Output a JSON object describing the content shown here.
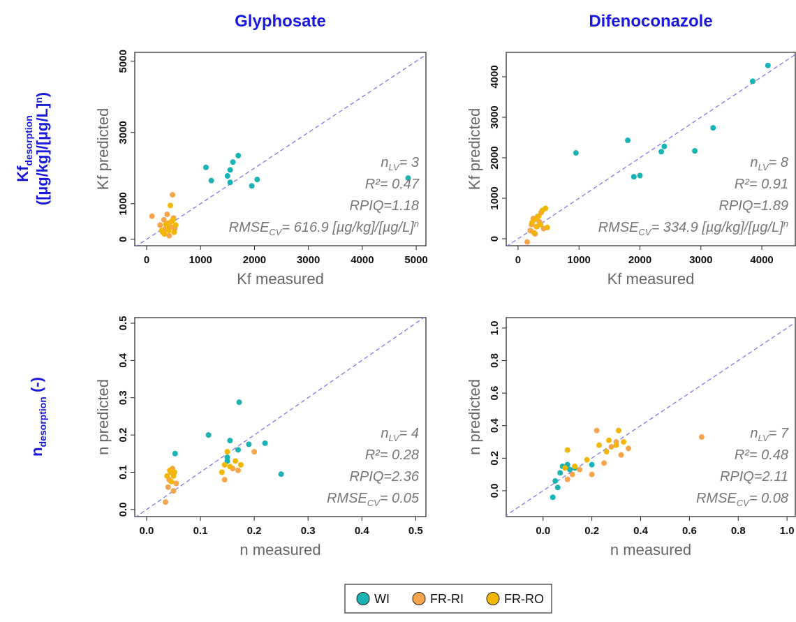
{
  "row_labels": [
    {
      "base": "Kf",
      "sub": "desorption",
      "line2": "([µg/kg]/[µg/L]",
      "sup": "n",
      "close": ")"
    },
    {
      "base": "n",
      "sub": "desorption",
      "rest": " (-)"
    }
  ],
  "chart_data": [
    {
      "type": "scatter",
      "title": "Glyphosate",
      "x_label": "Kf measured",
      "y_label": "Kf predicted",
      "xlim": [
        -220,
        5180
      ],
      "ylim": [
        -180,
        5250
      ],
      "xticks": [
        0,
        1000,
        2000,
        3000,
        4000,
        5000
      ],
      "yticks": [
        0,
        1000,
        3000,
        5000
      ],
      "stats": [
        {
          "base": "n",
          "sub": "LV",
          "rest": "= 3"
        },
        {
          "base": "R²= 0.47"
        },
        {
          "base": "RPIQ=1.18"
        },
        {
          "base": "RMSE",
          "sub": "CV",
          "rest": "= 616.9 [µg/kg]/[µg/L]",
          "sup": "n"
        }
      ],
      "series": [
        {
          "name": "WI",
          "color": "#1ab3b3",
          "x": [
            1100,
            1200,
            1500,
            1550,
            1600,
            1700,
            1550,
            1950,
            2050,
            4850
          ],
          "values": [
            2020,
            1650,
            1780,
            1950,
            2170,
            2350,
            1600,
            1500,
            1680,
            1720
          ]
        },
        {
          "name": "FR-RI",
          "color": "#f6a54c",
          "x": [
            100,
            250,
            300,
            320,
            350,
            380,
            400,
            420,
            450,
            480,
            500,
            520
          ],
          "values": [
            650,
            400,
            200,
            550,
            300,
            700,
            450,
            100,
            350,
            1250,
            600,
            300
          ]
        },
        {
          "name": "FR-RO",
          "color": "#f2b705",
          "x": [
            280,
            330,
            360,
            390,
            410,
            440,
            460,
            490,
            510,
            540
          ],
          "values": [
            250,
            150,
            420,
            380,
            250,
            950,
            500,
            550,
            200,
            400
          ]
        }
      ]
    },
    {
      "type": "scatter",
      "title": "Difenoconazole",
      "x_label": "Kf measured",
      "y_label": "Kf predicted",
      "xlim": [
        -194,
        4549
      ],
      "ylim": [
        -172,
        4603
      ],
      "xticks": [
        0,
        1000,
        2000,
        3000,
        4000
      ],
      "yticks": [
        0,
        1000,
        2000,
        3000,
        4000
      ],
      "stats": [
        {
          "base": "n",
          "sub": "LV",
          "rest": "= 8"
        },
        {
          "base": "R²= 0.91"
        },
        {
          "base": "RPIQ=1.89"
        },
        {
          "base": "RMSE",
          "sub": "CV",
          "rest": "= 334.9 [µg/kg]/[µg/L]",
          "sup": "n"
        }
      ],
      "series": [
        {
          "name": "WI",
          "color": "#1ab3b3",
          "x": [
            950,
            1800,
            1900,
            2000,
            2350,
            2400,
            2900,
            3200,
            3850,
            4100
          ],
          "values": [
            2120,
            2430,
            1530,
            1560,
            2150,
            2280,
            2170,
            2740,
            3890,
            4280
          ]
        },
        {
          "name": "FR-RI",
          "color": "#f6a54c",
          "x": [
            150,
            200,
            220,
            250,
            280,
            300,
            320,
            350,
            380,
            420
          ],
          "values": [
            -80,
            200,
            350,
            500,
            120,
            300,
            550,
            420,
            650,
            250
          ]
        },
        {
          "name": "FR-RO",
          "color": "#f2b705",
          "x": [
            230,
            260,
            290,
            310,
            340,
            370,
            400,
            450,
            480
          ],
          "values": [
            400,
            150,
            480,
            300,
            560,
            350,
            700,
            750,
            280
          ]
        }
      ]
    },
    {
      "type": "scatter",
      "x_label": "n measured",
      "y_label": "n predicted",
      "xlim": [
        -0.022,
        0.519
      ],
      "ylim": [
        -0.019,
        0.515
      ],
      "xticks": [
        {
          "value": 0,
          "label": "0.0"
        },
        0.1,
        0.2,
        0.3,
        0.4,
        0.5
      ],
      "yticks": [
        {
          "value": 0,
          "label": "0.0"
        },
        0.1,
        0.2,
        0.3,
        0.4,
        0.5
      ],
      "stats": [
        {
          "base": "n",
          "sub": "LV",
          "rest": "= 4"
        },
        {
          "base": "R²= 0.28"
        },
        {
          "base": "RPIQ=2.36"
        },
        {
          "base": "RMSE",
          "sub": "CV",
          "rest": "= 0.05"
        }
      ],
      "series": [
        {
          "name": "WI",
          "color": "#1ab3b3",
          "x": [
            0.053,
            0.115,
            0.15,
            0.155,
            0.17,
            0.172,
            0.19,
            0.22,
            0.25,
            0.15
          ],
          "values": [
            0.15,
            0.2,
            0.14,
            0.185,
            0.16,
            0.288,
            0.175,
            0.178,
            0.095,
            0.13
          ]
        },
        {
          "name": "FR-RI",
          "color": "#f6a54c",
          "x": [
            0.035,
            0.04,
            0.042,
            0.045,
            0.048,
            0.05,
            0.055,
            0.145,
            0.16,
            0.17,
            0.2
          ],
          "values": [
            0.02,
            0.06,
            0.08,
            0.1,
            0.11,
            0.05,
            0.07,
            0.08,
            0.11,
            0.105,
            0.155
          ]
        },
        {
          "name": "FR-RO",
          "color": "#f2b705",
          "x": [
            0.038,
            0.043,
            0.046,
            0.05,
            0.052,
            0.14,
            0.145,
            0.15,
            0.155,
            0.165,
            0.175
          ],
          "values": [
            0.09,
            0.105,
            0.075,
            0.09,
            0.1,
            0.1,
            0.12,
            0.155,
            0.115,
            0.13,
            0.12
          ]
        }
      ]
    },
    {
      "type": "scatter",
      "x_label": "n measured",
      "y_label": "n predicted",
      "xlim": [
        -0.151,
        1.034
      ],
      "ylim": [
        -0.159,
        1.064
      ],
      "xticks": [
        {
          "value": 0,
          "label": "0.0"
        },
        0.2,
        0.4,
        0.6,
        0.8,
        {
          "value": 1,
          "label": "1.0"
        }
      ],
      "yticks": [
        {
          "value": 0,
          "label": "0.0"
        },
        0.2,
        0.4,
        0.6,
        0.8,
        {
          "value": 1,
          "label": "1.0"
        }
      ],
      "stats": [
        {
          "base": "n",
          "sub": "LV",
          "rest": "= 7"
        },
        {
          "base": "R²= 0.48"
        },
        {
          "base": "RPIQ=2.11"
        },
        {
          "base": "RMSE",
          "sub": "CV",
          "rest": "= 0.08"
        }
      ],
      "series": [
        {
          "name": "WI",
          "color": "#1ab3b3",
          "x": [
            0.04,
            0.05,
            0.07,
            0.08,
            0.1,
            0.11,
            0.13,
            0.2,
            0.06
          ],
          "values": [
            -0.04,
            0.06,
            0.11,
            0.15,
            0.16,
            0.13,
            0.14,
            0.16,
            0.02
          ]
        },
        {
          "name": "FR-RI",
          "color": "#f6a54c",
          "x": [
            0.1,
            0.12,
            0.15,
            0.2,
            0.22,
            0.25,
            0.28,
            0.3,
            0.32,
            0.35,
            0.65
          ],
          "values": [
            0.07,
            0.1,
            0.13,
            0.1,
            0.37,
            0.17,
            0.27,
            0.3,
            0.22,
            0.26,
            0.33
          ]
        },
        {
          "name": "FR-RO",
          "color": "#f2b705",
          "x": [
            0.09,
            0.13,
            0.18,
            0.23,
            0.26,
            0.27,
            0.3,
            0.31,
            0.33,
            0.1
          ],
          "values": [
            0.14,
            0.15,
            0.19,
            0.28,
            0.24,
            0.31,
            0.28,
            0.37,
            0.3,
            0.25
          ]
        }
      ]
    }
  ]
}
